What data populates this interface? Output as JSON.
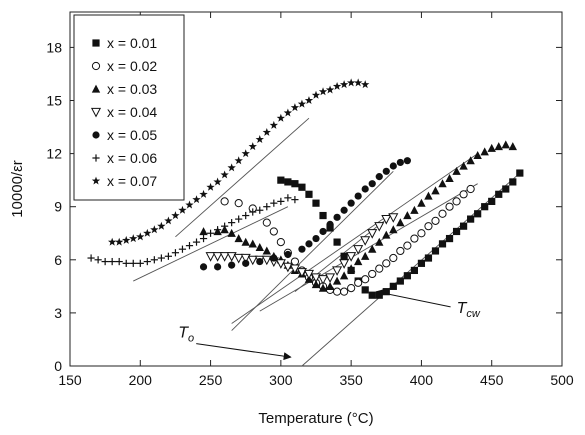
{
  "chart_data": {
    "type": "scatter",
    "xlabel": "Temperature (°C)",
    "ylabel": "10000/εr",
    "xlim": [
      150,
      500
    ],
    "ylim": [
      0,
      20
    ],
    "xticks": [
      "150",
      "200",
      "250",
      "300",
      "350",
      "400",
      "450",
      "500"
    ],
    "yticks": [
      "0",
      "3",
      "6",
      "9",
      "12",
      "15",
      "18"
    ],
    "legend_position": "top-left",
    "series": [
      {
        "name": "x = 0.01",
        "marker": "square-filled",
        "points": [
          [
            300,
            10.5
          ],
          [
            305,
            10.4
          ],
          [
            310,
            10.3
          ],
          [
            315,
            10.1
          ],
          [
            320,
            9.7
          ],
          [
            325,
            9.2
          ],
          [
            330,
            8.5
          ],
          [
            335,
            7.8
          ],
          [
            340,
            7.0
          ],
          [
            345,
            6.2
          ],
          [
            350,
            5.4
          ],
          [
            355,
            4.8
          ],
          [
            360,
            4.3
          ],
          [
            365,
            4.0
          ],
          [
            370,
            4.0
          ],
          [
            375,
            4.2
          ],
          [
            380,
            4.5
          ],
          [
            385,
            4.8
          ],
          [
            390,
            5.1
          ],
          [
            395,
            5.4
          ],
          [
            400,
            5.8
          ],
          [
            405,
            6.1
          ],
          [
            410,
            6.5
          ],
          [
            415,
            6.9
          ],
          [
            420,
            7.2
          ],
          [
            425,
            7.6
          ],
          [
            430,
            7.9
          ],
          [
            435,
            8.3
          ],
          [
            440,
            8.6
          ],
          [
            445,
            9.0
          ],
          [
            450,
            9.3
          ],
          [
            455,
            9.7
          ],
          [
            460,
            10.0
          ],
          [
            465,
            10.4
          ],
          [
            470,
            10.9
          ]
        ],
        "fit": [
          [
            315,
            0
          ],
          [
            470,
            10.9
          ]
        ]
      },
      {
        "name": "x = 0.02",
        "marker": "circle-open",
        "points": [
          [
            260,
            9.3
          ],
          [
            270,
            9.2
          ],
          [
            280,
            8.9
          ],
          [
            290,
            8.1
          ],
          [
            295,
            7.6
          ],
          [
            300,
            7.0
          ],
          [
            305,
            6.4
          ],
          [
            310,
            5.9
          ],
          [
            315,
            5.4
          ],
          [
            320,
            5.0
          ],
          [
            325,
            4.7
          ],
          [
            330,
            4.5
          ],
          [
            335,
            4.3
          ],
          [
            340,
            4.2
          ],
          [
            345,
            4.2
          ],
          [
            350,
            4.4
          ],
          [
            355,
            4.7
          ],
          [
            360,
            4.9
          ],
          [
            365,
            5.2
          ],
          [
            370,
            5.5
          ],
          [
            375,
            5.8
          ],
          [
            380,
            6.1
          ],
          [
            385,
            6.5
          ],
          [
            390,
            6.8
          ],
          [
            395,
            7.2
          ],
          [
            400,
            7.5
          ],
          [
            405,
            7.9
          ],
          [
            410,
            8.2
          ],
          [
            415,
            8.6
          ],
          [
            420,
            9.0
          ],
          [
            425,
            9.3
          ],
          [
            430,
            9.7
          ],
          [
            435,
            10.0
          ]
        ],
        "fit": [
          [
            285,
            3.1
          ],
          [
            440,
            10.3
          ]
        ]
      },
      {
        "name": "x = 0.03",
        "marker": "triangle-up-filled",
        "points": [
          [
            245,
            7.6
          ],
          [
            255,
            7.6
          ],
          [
            260,
            7.7
          ],
          [
            265,
            7.5
          ],
          [
            270,
            7.2
          ],
          [
            275,
            7.0
          ],
          [
            280,
            6.9
          ],
          [
            285,
            6.7
          ],
          [
            290,
            6.5
          ],
          [
            295,
            6.2
          ],
          [
            300,
            6.0
          ],
          [
            305,
            5.7
          ],
          [
            310,
            5.4
          ],
          [
            315,
            5.2
          ],
          [
            320,
            4.9
          ],
          [
            325,
            4.6
          ],
          [
            330,
            4.4
          ],
          [
            335,
            4.5
          ],
          [
            340,
            4.8
          ],
          [
            345,
            5.1
          ],
          [
            350,
            5.5
          ],
          [
            355,
            5.9
          ],
          [
            360,
            6.2
          ],
          [
            365,
            6.6
          ],
          [
            370,
            7.0
          ],
          [
            375,
            7.4
          ],
          [
            380,
            7.7
          ],
          [
            385,
            8.1
          ],
          [
            390,
            8.5
          ],
          [
            395,
            8.8
          ],
          [
            400,
            9.2
          ],
          [
            405,
            9.6
          ],
          [
            410,
            9.9
          ],
          [
            415,
            10.3
          ],
          [
            420,
            10.6
          ],
          [
            425,
            11.0
          ],
          [
            430,
            11.3
          ],
          [
            435,
            11.6
          ],
          [
            440,
            11.9
          ],
          [
            445,
            12.1
          ],
          [
            450,
            12.3
          ],
          [
            455,
            12.4
          ],
          [
            460,
            12.5
          ],
          [
            465,
            12.4
          ]
        ],
        "fit": [
          [
            265,
            2.4
          ],
          [
            440,
            12.0
          ]
        ]
      },
      {
        "name": "x = 0.04",
        "marker": "triangle-down-open",
        "points": [
          [
            250,
            6.2
          ],
          [
            255,
            6.2
          ],
          [
            260,
            6.2
          ],
          [
            265,
            6.2
          ],
          [
            270,
            6.1
          ],
          [
            275,
            6.1
          ],
          [
            280,
            6.0
          ],
          [
            285,
            6.0
          ],
          [
            290,
            6.0
          ],
          [
            295,
            5.9
          ],
          [
            300,
            5.8
          ],
          [
            305,
            5.6
          ],
          [
            310,
            5.5
          ],
          [
            315,
            5.3
          ],
          [
            320,
            5.2
          ],
          [
            325,
            5.0
          ],
          [
            330,
            4.9
          ],
          [
            335,
            5.0
          ],
          [
            340,
            5.4
          ],
          [
            345,
            5.8
          ],
          [
            350,
            6.2
          ],
          [
            355,
            6.6
          ],
          [
            360,
            7.1
          ],
          [
            365,
            7.5
          ],
          [
            370,
            7.9
          ],
          [
            375,
            8.3
          ],
          [
            380,
            8.4
          ]
        ],
        "fit": [
          [
            310,
            4.2
          ],
          [
            380,
            8.6
          ]
        ]
      },
      {
        "name": "x = 0.05",
        "marker": "circle-filled",
        "points": [
          [
            245,
            5.6
          ],
          [
            255,
            5.6
          ],
          [
            265,
            5.7
          ],
          [
            275,
            5.8
          ],
          [
            285,
            5.9
          ],
          [
            295,
            6.1
          ],
          [
            305,
            6.3
          ],
          [
            315,
            6.6
          ],
          [
            320,
            6.9
          ],
          [
            325,
            7.2
          ],
          [
            330,
            7.6
          ],
          [
            335,
            8.0
          ],
          [
            340,
            8.4
          ],
          [
            345,
            8.8
          ],
          [
            350,
            9.2
          ],
          [
            355,
            9.6
          ],
          [
            360,
            10.0
          ],
          [
            365,
            10.3
          ],
          [
            370,
            10.7
          ],
          [
            375,
            11.0
          ],
          [
            380,
            11.3
          ],
          [
            385,
            11.5
          ],
          [
            390,
            11.6
          ]
        ],
        "fit": [
          [
            265,
            2.0
          ],
          [
            380,
            11.0
          ]
        ]
      },
      {
        "name": "x = 0.06",
        "marker": "plus",
        "points": [
          [
            165,
            6.1
          ],
          [
            170,
            6.0
          ],
          [
            175,
            5.9
          ],
          [
            180,
            5.9
          ],
          [
            185,
            5.9
          ],
          [
            190,
            5.8
          ],
          [
            195,
            5.8
          ],
          [
            200,
            5.8
          ],
          [
            205,
            5.9
          ],
          [
            210,
            6.0
          ],
          [
            215,
            6.1
          ],
          [
            220,
            6.2
          ],
          [
            225,
            6.4
          ],
          [
            230,
            6.6
          ],
          [
            235,
            6.8
          ],
          [
            240,
            7.0
          ],
          [
            245,
            7.2
          ],
          [
            250,
            7.5
          ],
          [
            255,
            7.7
          ],
          [
            260,
            7.9
          ],
          [
            265,
            8.1
          ],
          [
            270,
            8.3
          ],
          [
            275,
            8.5
          ],
          [
            280,
            8.7
          ],
          [
            285,
            8.8
          ],
          [
            290,
            9.0
          ],
          [
            295,
            9.2
          ],
          [
            300,
            9.3
          ],
          [
            305,
            9.5
          ],
          [
            310,
            9.4
          ]
        ],
        "fit": [
          [
            195,
            4.8
          ],
          [
            305,
            9.0
          ]
        ]
      },
      {
        "name": "x = 0.07",
        "marker": "star",
        "points": [
          [
            180,
            7.0
          ],
          [
            185,
            7.0
          ],
          [
            190,
            7.1
          ],
          [
            195,
            7.2
          ],
          [
            200,
            7.3
          ],
          [
            205,
            7.5
          ],
          [
            210,
            7.7
          ],
          [
            215,
            7.9
          ],
          [
            220,
            8.2
          ],
          [
            225,
            8.5
          ],
          [
            230,
            8.8
          ],
          [
            235,
            9.1
          ],
          [
            240,
            9.4
          ],
          [
            245,
            9.7
          ],
          [
            250,
            10.1
          ],
          [
            255,
            10.4
          ],
          [
            260,
            10.8
          ],
          [
            265,
            11.2
          ],
          [
            270,
            11.6
          ],
          [
            275,
            12.0
          ],
          [
            280,
            12.4
          ],
          [
            285,
            12.8
          ],
          [
            290,
            13.2
          ],
          [
            295,
            13.6
          ],
          [
            300,
            14.0
          ],
          [
            305,
            14.3
          ],
          [
            310,
            14.6
          ],
          [
            315,
            14.8
          ],
          [
            320,
            15.0
          ],
          [
            325,
            15.3
          ],
          [
            330,
            15.5
          ],
          [
            335,
            15.6
          ],
          [
            340,
            15.8
          ],
          [
            345,
            15.9
          ],
          [
            350,
            16.0
          ],
          [
            355,
            16.0
          ],
          [
            360,
            15.9
          ]
        ],
        "fit": [
          [
            225,
            7.3
          ],
          [
            320,
            14.0
          ]
        ]
      }
    ],
    "annotations": [
      {
        "main": "T",
        "sub": "cw",
        "at": [
          425,
          3.0
        ],
        "arrow_to": [
          368,
          4.2
        ]
      },
      {
        "main": "T",
        "sub": "o",
        "at": [
          227,
          1.6
        ],
        "arrow_to": [
          307,
          0.5
        ]
      }
    ]
  }
}
